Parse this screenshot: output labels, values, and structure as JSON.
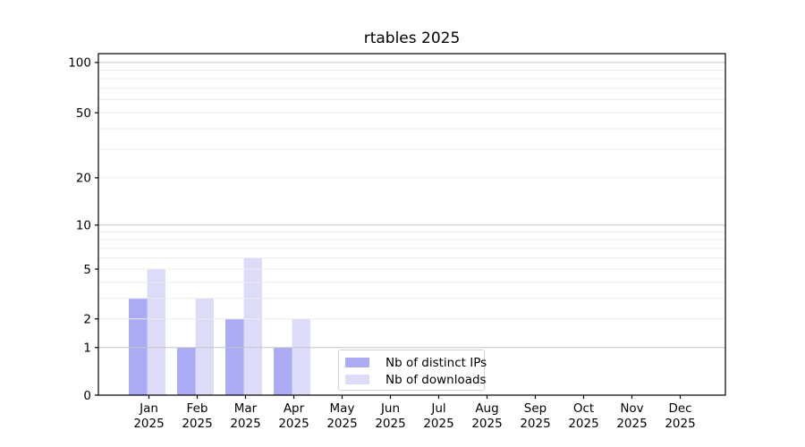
{
  "chart": {
    "title": "rtables 2025"
  },
  "chart_data": {
    "type": "bar",
    "title": "rtables 2025",
    "categories": [
      "Jan 2025",
      "Feb 2025",
      "Mar 2025",
      "Apr 2025",
      "May 2025",
      "Jun 2025",
      "Jul 2025",
      "Aug 2025",
      "Sep 2025",
      "Oct 2025",
      "Nov 2025",
      "Dec 2025"
    ],
    "series": [
      {
        "name": "Nb of distinct IPs",
        "color": "#aaaaf5",
        "values": [
          3,
          1,
          2,
          1,
          0,
          0,
          0,
          0,
          0,
          0,
          0,
          0
        ]
      },
      {
        "name": "Nb of downloads",
        "color": "#dcdcf8",
        "values": [
          5,
          3,
          6,
          2,
          0,
          0,
          0,
          0,
          0,
          0,
          0,
          0
        ]
      }
    ],
    "xlabel": "",
    "ylabel": "",
    "yscale": "log-like (y ~ ln((v+1.1)/1.1))",
    "ylim": [
      0,
      113
    ],
    "ytick_values": [
      0,
      1,
      2,
      5,
      10,
      20,
      50,
      100
    ],
    "ytick_labels": [
      "0",
      "1",
      "2",
      "5",
      "10",
      "20",
      "50",
      "100"
    ],
    "major_grid_values": [
      1,
      10,
      100
    ],
    "minor_grid_values": [
      2,
      3,
      4,
      5,
      6,
      7,
      8,
      9,
      20,
      30,
      40,
      50,
      60,
      70,
      80,
      90
    ],
    "grid": true,
    "legend_position": "lower center",
    "colors": {
      "minor_grid": "#ececec",
      "major_grid": "#c6c6c6",
      "axis": "#000000",
      "background": "#ffffff",
      "text": "#000000"
    }
  }
}
